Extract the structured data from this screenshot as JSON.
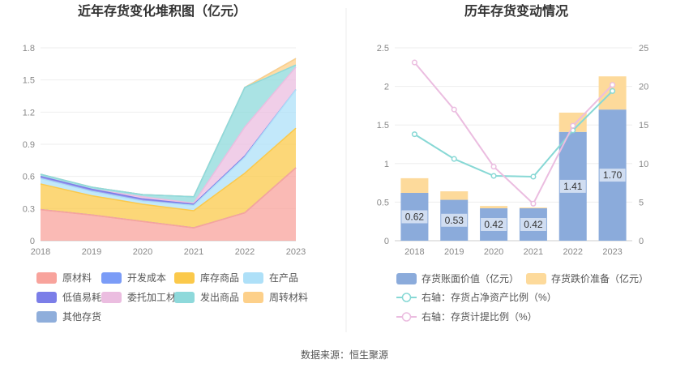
{
  "footer": {
    "source": "数据来源：恒生聚源"
  },
  "chart_data": [
    {
      "type": "area",
      "stacked": true,
      "title": "近年存货变化堆积图（亿元）",
      "x": [
        "2018",
        "2019",
        "2020",
        "2021",
        "2022",
        "2023"
      ],
      "yticks": [
        "0",
        "0.3",
        "0.6",
        "0.9",
        "1.2",
        "1.5",
        "1.8"
      ],
      "ylim": [
        0,
        1.8
      ],
      "grid": true,
      "legend_position": "bottom",
      "series": [
        {
          "name": "原材料",
          "color": "#F8A39C",
          "values": [
            0.29,
            0.24,
            0.18,
            0.12,
            0.26,
            0.68
          ]
        },
        {
          "name": "开发成本",
          "color": "#7B9CF7",
          "values": [
            0.0,
            0.0,
            0.0,
            0.0,
            0.0,
            0.0
          ]
        },
        {
          "name": "库存商品",
          "color": "#FBC94B",
          "values": [
            0.24,
            0.18,
            0.16,
            0.16,
            0.37,
            0.37
          ]
        },
        {
          "name": "在产品",
          "color": "#AEE0F8",
          "values": [
            0.05,
            0.04,
            0.03,
            0.05,
            0.15,
            0.36
          ]
        },
        {
          "name": "低值易耗品",
          "color": "#7B7EE8",
          "values": [
            0.02,
            0.02,
            0.02,
            0.01,
            0.01,
            0.0
          ]
        },
        {
          "name": "委托加工材料",
          "color": "#EBBDE0",
          "values": [
            0.0,
            0.0,
            0.02,
            0.01,
            0.27,
            0.21
          ]
        },
        {
          "name": "发出商品",
          "color": "#8ED9DB",
          "values": [
            0.02,
            0.02,
            0.02,
            0.06,
            0.37,
            0.02
          ]
        },
        {
          "name": "周转材料",
          "color": "#FDD08A",
          "values": [
            0.0,
            0.0,
            0.0,
            0.0,
            0.0,
            0.06
          ]
        },
        {
          "name": "其他存货",
          "color": "#8FAEDB",
          "values": [
            0.0,
            0.0,
            0.0,
            0.0,
            0.0,
            0.0
          ]
        }
      ]
    },
    {
      "type": "bar",
      "stacked": true,
      "title": "历年存货变动情况",
      "categories": [
        "2018",
        "2019",
        "2020",
        "2021",
        "2022",
        "2023"
      ],
      "ylim": [
        0,
        2.5
      ],
      "yticks": [
        "0",
        "0.5",
        "1",
        "1.5",
        "2",
        "2.5"
      ],
      "y2lim": [
        0,
        25
      ],
      "y2ticks": [
        "0",
        "5",
        "10",
        "15",
        "20",
        "25"
      ],
      "grid": true,
      "legend_position": "bottom",
      "series": [
        {
          "name": "存货账面价值（亿元）",
          "color": "#8BABDB",
          "values": [
            0.62,
            0.53,
            0.42,
            0.42,
            1.41,
            1.7
          ],
          "labels": [
            "0.62",
            "0.53",
            "0.42",
            "0.42",
            "1.41",
            "1.70"
          ]
        },
        {
          "name": "存货跌价准备（亿元）",
          "color": "#FDDA9B",
          "values": [
            0.19,
            0.11,
            0.03,
            0.01,
            0.25,
            0.43
          ]
        }
      ],
      "line_series": [
        {
          "name": "右轴：存货占净资产比例（%）",
          "color": "#87D8D5",
          "axis": "right",
          "values": [
            13.8,
            10.6,
            8.4,
            8.3,
            14.3,
            19.4
          ]
        },
        {
          "name": "右轴：存货计提比例（%）",
          "color": "#EBBDE0",
          "axis": "right",
          "values": [
            23.1,
            17.0,
            9.6,
            4.8,
            14.9,
            20.2
          ]
        }
      ]
    }
  ]
}
